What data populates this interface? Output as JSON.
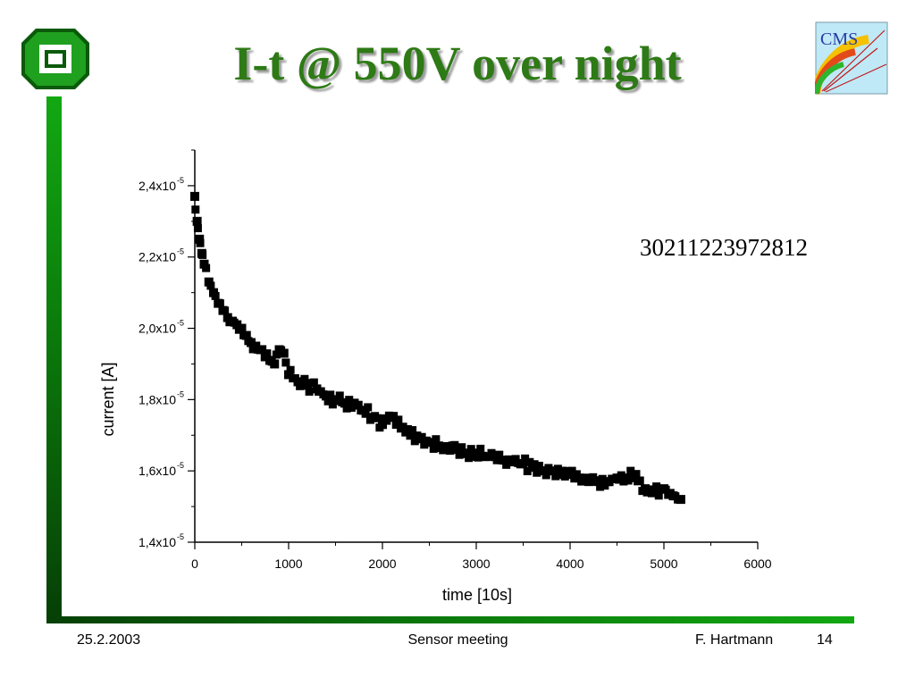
{
  "slide": {
    "title": "I-t @ 550V over night",
    "sample_id": "30211223972812",
    "logo_left": "university-logo",
    "logo_right_text": "CMS",
    "colors": {
      "title": "#2e7a16",
      "bar_light": "#12a812",
      "bar_dark": "#063f06"
    }
  },
  "footer": {
    "date": "25.2.2003",
    "event": "Sensor meeting",
    "author": "F. Hartmann",
    "page": "14"
  },
  "chart_data": {
    "type": "scatter",
    "xlabel": "time [10s]",
    "ylabel": "current [A]",
    "xlim": [
      0,
      6000
    ],
    "ylim": [
      1.4e-05,
      2.5e-05
    ],
    "x_ticks": [
      {
        "value": 0,
        "label": "0"
      },
      {
        "value": 1000,
        "label": "1000"
      },
      {
        "value": 2000,
        "label": "2000"
      },
      {
        "value": 3000,
        "label": "3000"
      },
      {
        "value": 4000,
        "label": "4000"
      },
      {
        "value": 5000,
        "label": "5000"
      },
      {
        "value": 6000,
        "label": "6000"
      }
    ],
    "y_ticks": [
      {
        "value": 1.4e-05,
        "mantissa": "1,4x10",
        "exp": "-5"
      },
      {
        "value": 1.6e-05,
        "mantissa": "1,6x10",
        "exp": "-5"
      },
      {
        "value": 1.8e-05,
        "mantissa": "1,8x10",
        "exp": "-5"
      },
      {
        "value": 2e-05,
        "mantissa": "2,0x10",
        "exp": "-5"
      },
      {
        "value": 2.2e-05,
        "mantissa": "2,2x10",
        "exp": "-5"
      },
      {
        "value": 2.4e-05,
        "mantissa": "2,4x10",
        "exp": "-5"
      }
    ],
    "grid": false,
    "marker": "filled-square",
    "marker_color": "#000000",
    "series": [
      {
        "points": [
          [
            0,
            2.37e-05
          ],
          [
            25,
            2.3e-05
          ],
          [
            50,
            2.25e-05
          ],
          [
            75,
            2.21e-05
          ],
          [
            100,
            2.18e-05
          ],
          [
            150,
            2.13e-05
          ],
          [
            200,
            2.1e-05
          ],
          [
            250,
            2.07e-05
          ],
          [
            300,
            2.05e-05
          ],
          [
            350,
            2.03e-05
          ],
          [
            400,
            2.02e-05
          ],
          [
            450,
            2.01e-05
          ],
          [
            500,
            2e-05
          ],
          [
            550,
            1.98e-05
          ],
          [
            600,
            1.96e-05
          ],
          [
            650,
            1.95e-05
          ],
          [
            700,
            1.94e-05
          ],
          [
            750,
            1.92e-05
          ],
          [
            800,
            1.91e-05
          ],
          [
            850,
            1.9e-05
          ],
          [
            900,
            1.94e-05
          ],
          [
            950,
            1.93e-05
          ],
          [
            1000,
            1.87e-05
          ],
          [
            1100,
            1.85e-05
          ],
          [
            1200,
            1.84e-05
          ],
          [
            1300,
            1.83e-05
          ],
          [
            1400,
            1.81e-05
          ],
          [
            1500,
            1.8e-05
          ],
          [
            1600,
            1.79e-05
          ],
          [
            1700,
            1.79e-05
          ],
          [
            1800,
            1.77e-05
          ],
          [
            1900,
            1.75e-05
          ],
          [
            2000,
            1.73e-05
          ],
          [
            2100,
            1.75e-05
          ],
          [
            2200,
            1.72e-05
          ],
          [
            2300,
            1.7e-05
          ],
          [
            2400,
            1.69e-05
          ],
          [
            2500,
            1.68e-05
          ],
          [
            2600,
            1.67e-05
          ],
          [
            2700,
            1.66e-05
          ],
          [
            2800,
            1.66e-05
          ],
          [
            2900,
            1.65e-05
          ],
          [
            3000,
            1.65e-05
          ],
          [
            3100,
            1.64e-05
          ],
          [
            3200,
            1.64e-05
          ],
          [
            3300,
            1.63e-05
          ],
          [
            3400,
            1.63e-05
          ],
          [
            3500,
            1.62e-05
          ],
          [
            3600,
            1.61e-05
          ],
          [
            3700,
            1.6e-05
          ],
          [
            3800,
            1.6e-05
          ],
          [
            3900,
            1.59e-05
          ],
          [
            4000,
            1.59e-05
          ],
          [
            4100,
            1.58e-05
          ],
          [
            4200,
            1.57e-05
          ],
          [
            4300,
            1.57e-05
          ],
          [
            4400,
            1.57e-05
          ],
          [
            4500,
            1.58e-05
          ],
          [
            4600,
            1.58e-05
          ],
          [
            4700,
            1.59e-05
          ],
          [
            4800,
            1.55e-05
          ],
          [
            4900,
            1.54e-05
          ],
          [
            5000,
            1.55e-05
          ],
          [
            5100,
            1.53e-05
          ],
          [
            5180,
            1.52e-05
          ]
        ]
      }
    ]
  }
}
